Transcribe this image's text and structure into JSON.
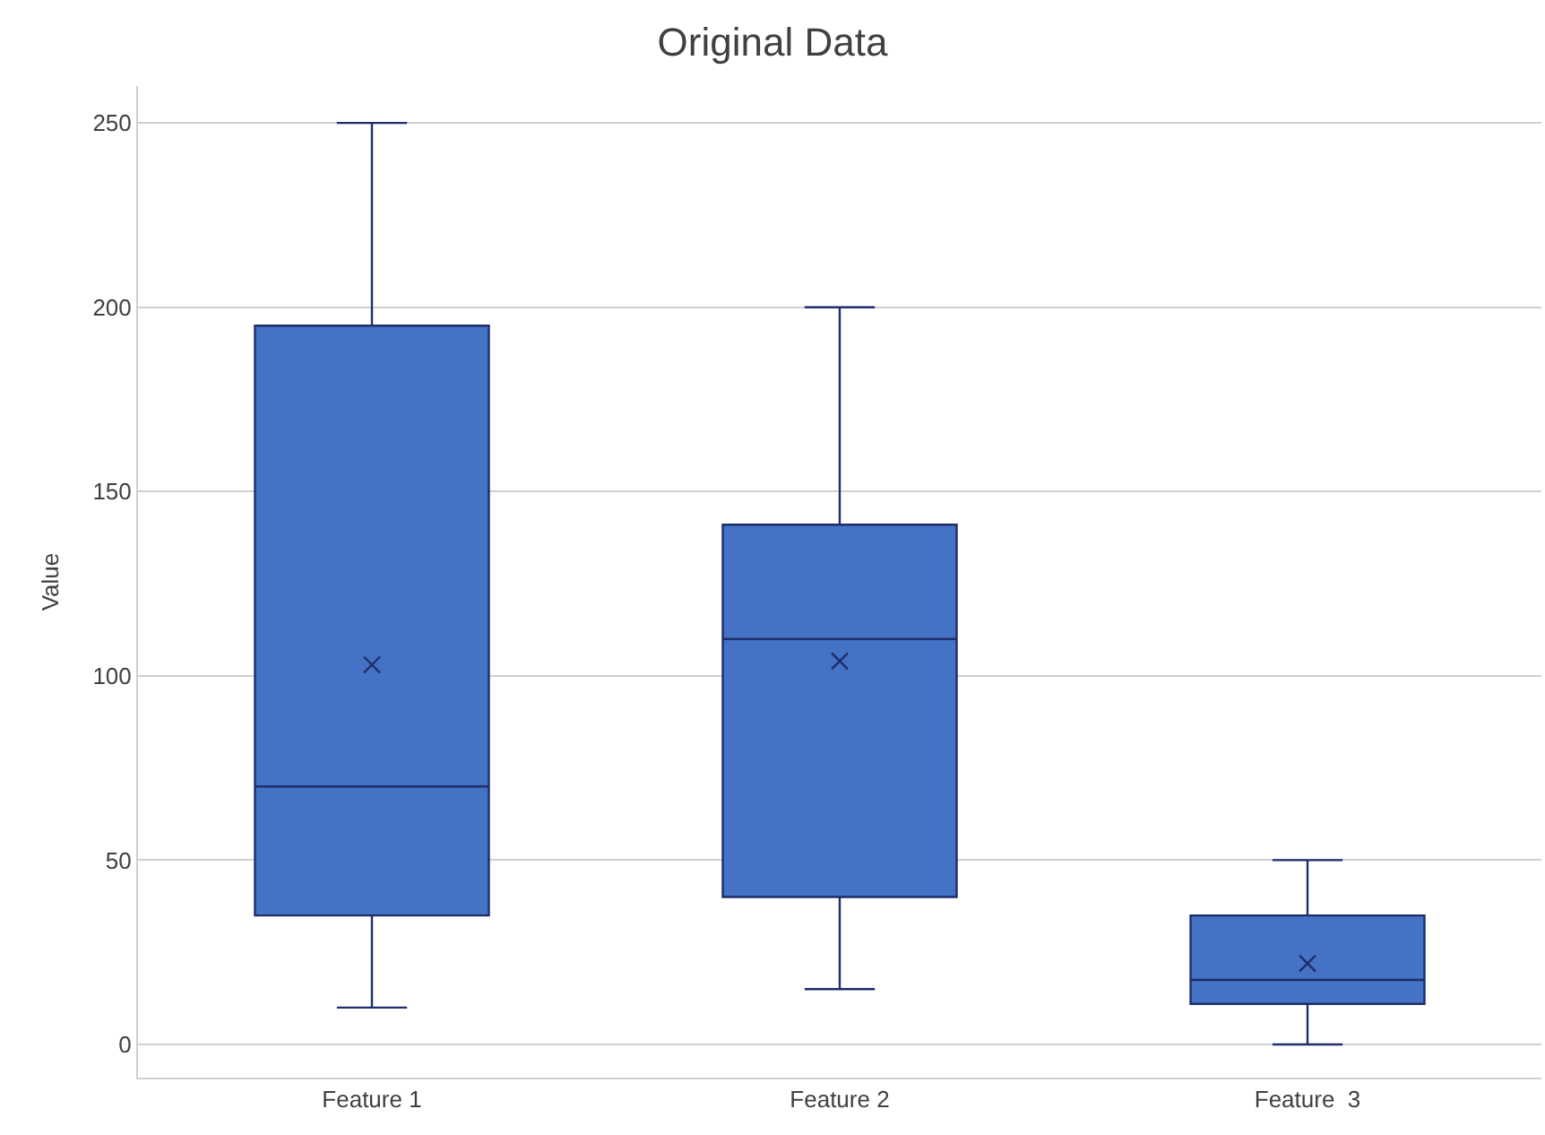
{
  "chart_data": {
    "type": "box",
    "title": "Original Data",
    "ylabel": "Value",
    "categories": [
      "Feature 1",
      "Feature 2",
      "Feature  3"
    ],
    "color": "#4472c4",
    "boxes": [
      {
        "low": 10,
        "q1": 35,
        "median": 70,
        "q3": 195,
        "high": 250,
        "mean": 103
      },
      {
        "low": 15,
        "q1": 40,
        "median": 110,
        "q3": 141,
        "high": 200,
        "mean": 104
      },
      {
        "low": 0,
        "q1": 11,
        "median": 17.5,
        "q3": 35,
        "high": 50,
        "mean": 22
      }
    ],
    "ylim": [
      -9,
      260
    ],
    "yticks": [
      0,
      50,
      100,
      150,
      200,
      250
    ],
    "grid": "y"
  }
}
